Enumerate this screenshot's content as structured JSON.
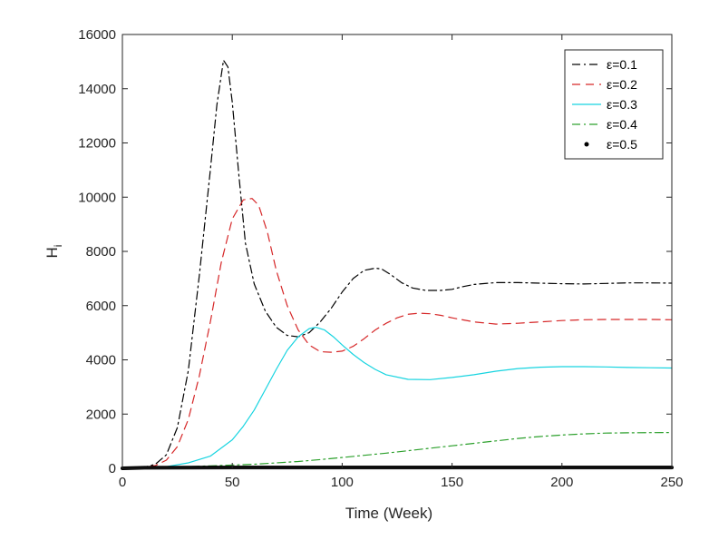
{
  "chart_data": {
    "type": "line",
    "title": "",
    "xlabel": "Time (Week)",
    "ylabel_main": "H",
    "ylabel_sub": "i",
    "xlim": [
      0,
      250
    ],
    "ylim": [
      0,
      16000
    ],
    "xticks": [
      0,
      50,
      100,
      150,
      200,
      250
    ],
    "yticks": [
      0,
      2000,
      4000,
      6000,
      8000,
      10000,
      12000,
      14000,
      16000
    ],
    "grid": false,
    "legend_position": "top-right",
    "series": [
      {
        "name": "ε=0.1",
        "color": "#000000",
        "dash": "dashdot",
        "x": [
          0,
          10,
          15,
          20,
          25,
          30,
          35,
          40,
          43,
          46,
          48,
          50,
          53,
          56,
          60,
          65,
          70,
          75,
          80,
          85,
          90,
          95,
          100,
          105,
          110,
          115,
          118,
          122,
          127,
          132,
          138,
          145,
          150,
          155,
          160,
          170,
          180,
          190,
          200,
          210,
          220,
          230,
          240,
          250
        ],
        "y": [
          0,
          40,
          150,
          500,
          1500,
          3600,
          7100,
          11000,
          13400,
          15050,
          14800,
          13500,
          10800,
          8300,
          6800,
          5800,
          5200,
          4900,
          4850,
          5000,
          5400,
          5900,
          6500,
          7000,
          7300,
          7380,
          7350,
          7150,
          6850,
          6650,
          6560,
          6560,
          6600,
          6700,
          6780,
          6850,
          6850,
          6830,
          6810,
          6800,
          6820,
          6840,
          6840,
          6830
        ]
      },
      {
        "name": "ε=0.2",
        "color": "#d62728",
        "dash": "dashed",
        "x": [
          0,
          10,
          15,
          20,
          25,
          30,
          35,
          40,
          45,
          50,
          55,
          59,
          62,
          66,
          70,
          75,
          80,
          85,
          90,
          95,
          100,
          105,
          110,
          115,
          120,
          125,
          130,
          135,
          140,
          145,
          150,
          160,
          170,
          180,
          190,
          200,
          210,
          220,
          230,
          240,
          250
        ],
        "y": [
          0,
          30,
          100,
          300,
          800,
          1800,
          3400,
          5400,
          7600,
          9200,
          9900,
          9950,
          9700,
          8700,
          7300,
          6000,
          5100,
          4550,
          4300,
          4280,
          4320,
          4500,
          4780,
          5100,
          5350,
          5550,
          5680,
          5720,
          5700,
          5640,
          5550,
          5400,
          5320,
          5350,
          5400,
          5450,
          5480,
          5490,
          5490,
          5490,
          5480
        ]
      },
      {
        "name": "ε=0.3",
        "color": "#17d4e0",
        "dash": "solid",
        "x": [
          0,
          10,
          20,
          30,
          40,
          50,
          55,
          60,
          65,
          70,
          75,
          80,
          85,
          88,
          92,
          96,
          100,
          105,
          110,
          115,
          120,
          130,
          140,
          150,
          160,
          170,
          180,
          190,
          200,
          210,
          220,
          230,
          240,
          250
        ],
        "y": [
          0,
          20,
          60,
          200,
          450,
          1050,
          1550,
          2150,
          2900,
          3650,
          4350,
          4850,
          5150,
          5200,
          5100,
          4850,
          4550,
          4200,
          3900,
          3650,
          3450,
          3280,
          3270,
          3350,
          3450,
          3580,
          3680,
          3730,
          3750,
          3750,
          3740,
          3720,
          3710,
          3700
        ]
      },
      {
        "name": "ε=0.4",
        "color": "#2ca02c",
        "dash": "dashdot",
        "x": [
          0,
          10,
          20,
          30,
          40,
          50,
          60,
          70,
          80,
          90,
          100,
          110,
          120,
          130,
          140,
          150,
          160,
          170,
          180,
          190,
          200,
          210,
          220,
          230,
          240,
          250
        ],
        "y": [
          0,
          10,
          30,
          60,
          90,
          120,
          150,
          200,
          250,
          320,
          400,
          480,
          560,
          650,
          740,
          830,
          920,
          1010,
          1100,
          1170,
          1230,
          1270,
          1300,
          1310,
          1315,
          1320
        ]
      },
      {
        "name": "ε=0.5",
        "color": "#000000",
        "dash": "thick",
        "x": [
          0,
          10,
          50,
          100,
          150,
          200,
          250
        ],
        "y": [
          0,
          20,
          30,
          30,
          30,
          30,
          30
        ]
      }
    ]
  }
}
